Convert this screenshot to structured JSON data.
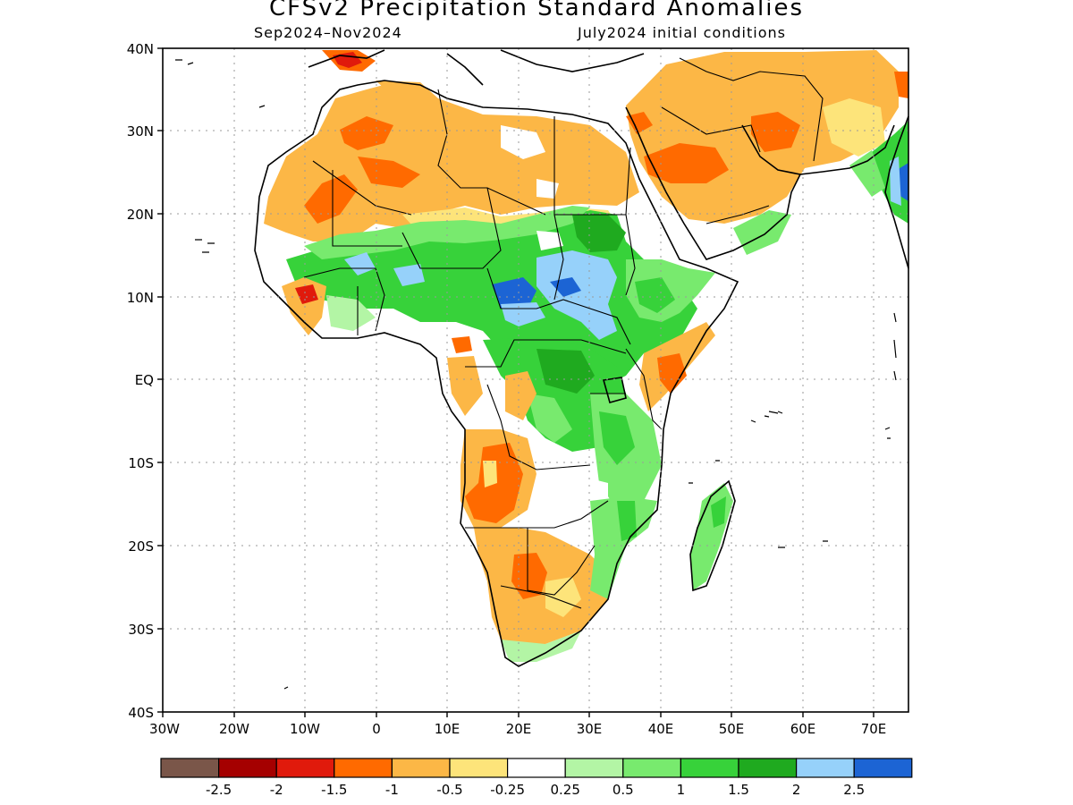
{
  "title": "CFSv2 Precipitation Standard Anomalies",
  "period": "Sep2024–Nov2024",
  "initial_conditions": "July2024 initial conditions",
  "lat_labels": [
    "40N",
    "30N",
    "20N",
    "10N",
    "EQ",
    "10S",
    "20S",
    "30S",
    "40S"
  ],
  "lon_labels": [
    "30W",
    "20W",
    "10W",
    "0",
    "10E",
    "20E",
    "30E",
    "40E",
    "50E",
    "60E",
    "70E"
  ],
  "colorbar": {
    "colors": [
      "#7a5649",
      "#a50000",
      "#e01a0c",
      "#ff6a00",
      "#fcb746",
      "#fde47a",
      "#ffffff",
      "#b3f5a5",
      "#78ea6e",
      "#37d23a",
      "#1faa1f",
      "#96d1fa",
      "#1c64d4"
    ],
    "labels": [
      "-2.5",
      "-2",
      "-1.5",
      "-1",
      "-0.5",
      "-0.25",
      "0.25",
      "0.5",
      "1",
      "1.5",
      "2",
      "2.5"
    ]
  },
  "palette": {
    "orange_light": "#fcb746",
    "orange": "#ff6a00",
    "red": "#e01a0c",
    "yellow": "#fde47a",
    "green_pale": "#b3f5a5",
    "green_light": "#78ea6e",
    "green": "#37d23a",
    "green_dark": "#1faa1f",
    "blue_light": "#96d1fa",
    "blue": "#1c64d4"
  }
}
